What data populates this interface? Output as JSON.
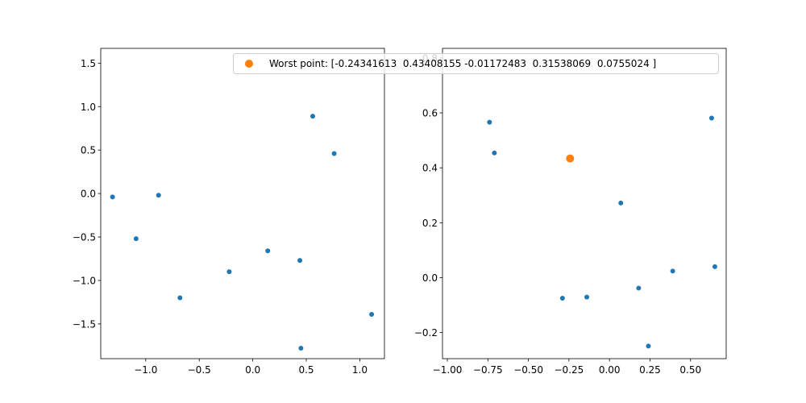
{
  "colors": {
    "series": "#1f77b4",
    "worst": "#ff7f0e",
    "axis": "#000000"
  },
  "legend": {
    "label": "Worst point: [-0.24341613  0.43408155 -0.01172483  0.31538069  0.0755024 ]"
  },
  "chart_data": [
    {
      "type": "scatter",
      "title": "",
      "xlabel": "",
      "ylabel": "",
      "xlim": [
        -1.42,
        1.23
      ],
      "ylim": [
        -1.9,
        1.67
      ],
      "xticks": [
        -1.0,
        -0.5,
        0.0,
        0.5,
        1.0
      ],
      "xtick_labels": [
        "−1.0",
        "−0.5",
        "0.0",
        "0.5",
        "1.0"
      ],
      "yticks": [
        -1.5,
        -1.0,
        -0.5,
        0.0,
        0.5,
        1.0,
        1.5
      ],
      "ytick_labels": [
        "−1.5",
        "−1.0",
        "−0.5",
        "0.0",
        "0.5",
        "1.0",
        "1.5"
      ],
      "grid": false,
      "series": [
        {
          "points": [
            [
              -1.31,
              -0.04
            ],
            [
              -1.09,
              -0.52
            ],
            [
              -0.88,
              -0.02
            ],
            [
              -0.68,
              -1.2
            ],
            [
              -0.22,
              -0.9
            ],
            [
              0.14,
              -0.66
            ],
            [
              0.44,
              -0.77
            ],
            [
              0.45,
              -1.78
            ],
            [
              0.56,
              0.89
            ],
            [
              0.76,
              0.46
            ],
            [
              1.11,
              -1.39
            ]
          ]
        }
      ]
    },
    {
      "type": "scatter",
      "title": "",
      "xlabel": "",
      "ylabel": "",
      "xlim": [
        -1.03,
        0.72
      ],
      "ylim": [
        -0.295,
        0.835
      ],
      "xticks": [
        -1.0,
        -0.75,
        -0.5,
        -0.25,
        0.0,
        0.25,
        0.5
      ],
      "xtick_labels": [
        "−1.00",
        "−0.75",
        "−0.50",
        "−0.25",
        "0.00",
        "0.25",
        "0.50"
      ],
      "yticks": [
        -0.2,
        0.0,
        0.2,
        0.4,
        0.6,
        0.8
      ],
      "ytick_labels": [
        "−0.2",
        "0.0",
        "0.2",
        "0.4",
        "0.6",
        "0.8"
      ],
      "grid": false,
      "series": [
        {
          "points": [
            [
              -0.74,
              0.566
            ],
            [
              -0.71,
              0.454
            ],
            [
              -0.29,
              -0.075
            ],
            [
              -0.14,
              -0.071
            ],
            [
              0.07,
              0.272
            ],
            [
              0.18,
              -0.038
            ],
            [
              0.24,
              -0.249
            ],
            [
              0.39,
              0.024
            ],
            [
              0.63,
              0.581
            ],
            [
              0.65,
              0.04
            ]
          ]
        },
        {
          "name": "Worst point: [-0.24341613  0.43408155 -0.01172483  0.31538069  0.0755024 ]",
          "points": [
            [
              -0.243,
              0.434
            ]
          ]
        }
      ]
    }
  ]
}
